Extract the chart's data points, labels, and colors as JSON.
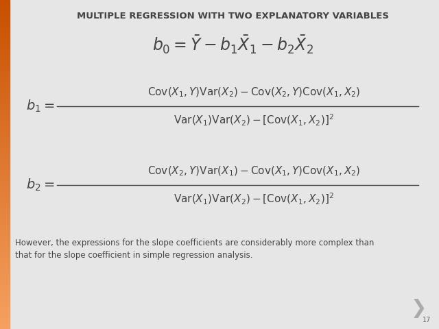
{
  "title": "MULTIPLE REGRESSION WITH TWO EXPLANATORY VARIABLES",
  "title_fontsize": 9.5,
  "title_color": "#444444",
  "bg_color": "#e6e6e6",
  "left_bar_color_top": "#c85000",
  "left_bar_color_bottom": "#f5a060",
  "formula1_fontsize": 17,
  "formula_fontsize": 11,
  "footer_text": "However, the expressions for the slope coefficients are considerably more complex than\nthat for the slope coefficient in simple regression analysis.",
  "footer_fontsize": 8.5,
  "page_number": "17",
  "arrow_color": "#aaaaaa",
  "text_color": "#444444"
}
